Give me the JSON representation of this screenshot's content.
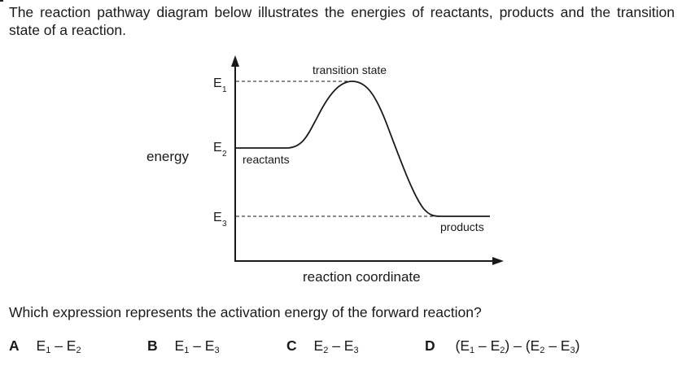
{
  "question": {
    "intro": "The reaction pathway diagram below illustrates the energies of reactants, products and the transition state of a reaction.",
    "prompt": "Which expression represents the activation energy of the forward reaction?"
  },
  "diagram": {
    "y_axis_label": "energy",
    "x_axis_label": "reaction coordinate",
    "levels": [
      {
        "base": "E",
        "sub": "1"
      },
      {
        "base": "E",
        "sub": "2"
      },
      {
        "base": "E",
        "sub": "3"
      }
    ],
    "labels": {
      "transition_state": "transition state",
      "reactants": "reactants",
      "products": "products"
    }
  },
  "options": [
    {
      "letter": "A",
      "parts": [
        "E",
        "1",
        " – E",
        "2",
        ""
      ]
    },
    {
      "letter": "B",
      "parts": [
        "E",
        "1",
        " – E",
        "3",
        ""
      ]
    },
    {
      "letter": "C",
      "parts": [
        "E",
        "2",
        " – E",
        "3",
        ""
      ]
    },
    {
      "letter": "D",
      "parts": [
        "(E",
        "1",
        " – E",
        "2",
        ") – (E",
        "2",
        " – E",
        "3",
        ")"
      ]
    }
  ]
}
